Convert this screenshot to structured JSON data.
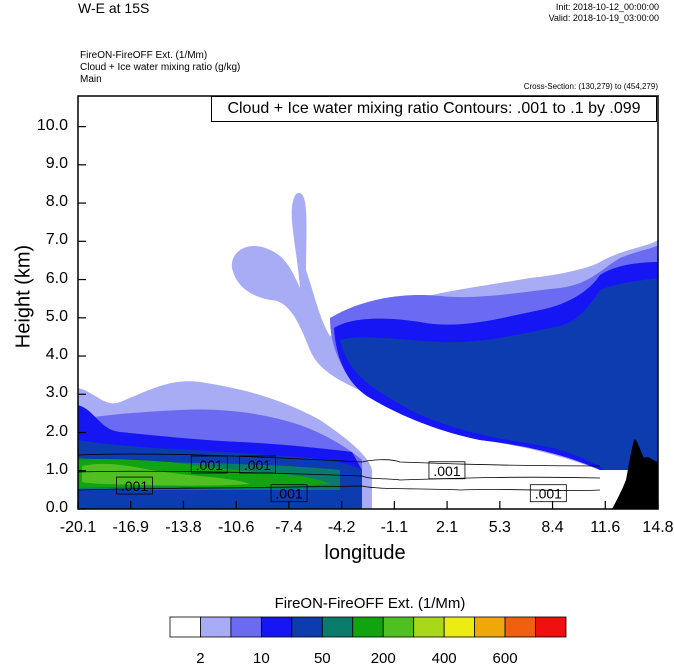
{
  "header": {
    "title": "W-E at 15S",
    "init": "Init: 2018-10-12_00:00:00",
    "valid": "Valid: 2018-10-19_03:00:00",
    "field1": "FireON-FireOFF Ext.   (1/Mm)",
    "field2": "Cloud + Ice water mixing ratio   (g/kg)",
    "field3": "Main",
    "cross_section": "Cross-Section: (130,279) to (454,279)"
  },
  "colors": {
    "levels": [
      "#ffffff",
      "#a8acf4",
      "#6a6af2",
      "#1616f4",
      "#0c3cb0",
      "#0a7a6a",
      "#10a410",
      "#50c020",
      "#a8d818",
      "#ecec10",
      "#f0a808",
      "#f06010",
      "#f01010"
    ],
    "terrain": "#000000"
  },
  "chart_data": {
    "type": "heatmap",
    "title": "Cloud + Ice water mixing ratio Contours: .001 to .1 by .099",
    "xlabel": "longitude",
    "ylabel": "Height (km)",
    "xlim": [
      -20.1,
      14.8
    ],
    "ylim": [
      0,
      10.8
    ],
    "xticks": [
      "-20.1",
      "-16.9",
      "-13.8",
      "-10.6",
      "-7.4",
      "-4.2",
      "-1.1",
      "2.1",
      "5.3",
      "8.4",
      "11.6",
      "14.8"
    ],
    "yticks": [
      "0.0",
      "1.0",
      "2.0",
      "3.0",
      "4.0",
      "5.0",
      "6.0",
      "7.0",
      "8.0",
      "9.0",
      "10.0"
    ],
    "contour_labels": [
      {
        "text": ".001",
        "lon": -12.2,
        "h": 1.15
      },
      {
        "text": ".001",
        "lon": -9.3,
        "h": 1.15
      },
      {
        "text": ".001",
        "lon": -16.7,
        "h": 0.6
      },
      {
        "text": ".001",
        "lon": -7.4,
        "h": 0.4
      },
      {
        "text": ".001",
        "lon": 2.1,
        "h": 1.0
      },
      {
        "text": ".001",
        "lon": 8.2,
        "h": 0.4
      }
    ],
    "colorbar": {
      "title": "FireON-FireOFF Ext.  (1/Mm)",
      "labels": [
        "2",
        "10",
        "50",
        "200",
        "400",
        "600"
      ]
    }
  }
}
